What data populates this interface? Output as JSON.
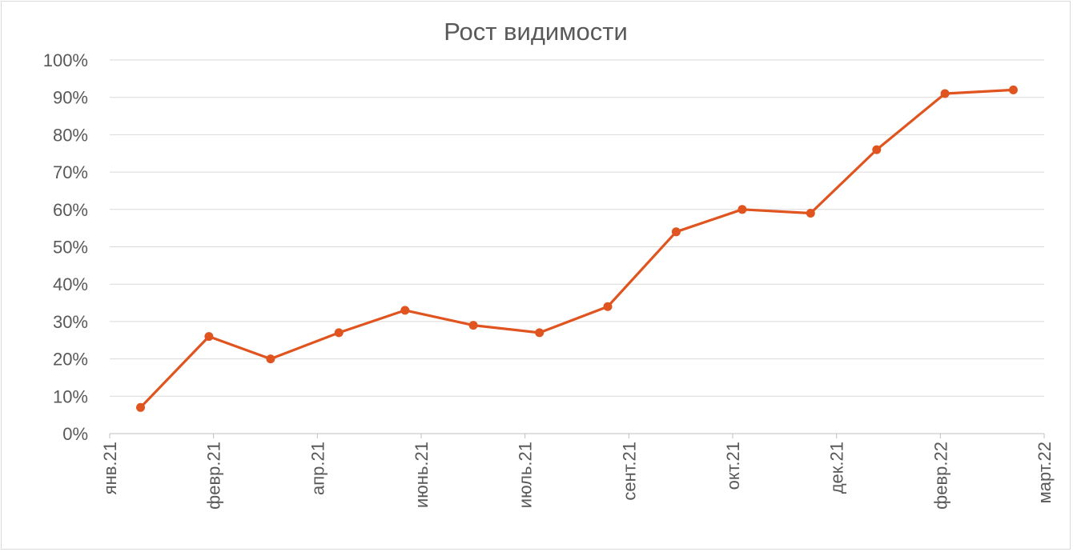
{
  "chart_data": {
    "type": "line",
    "title": "Рост видимости",
    "xlabel": "",
    "ylabel": "",
    "x_ticks": [
      "янв.21",
      "февр.21",
      "апр.21",
      "июнь.21",
      "июль.21",
      "сент.21",
      "окт.21",
      "дек.21",
      "февр.22",
      "март.22"
    ],
    "y_ticks": [
      "0%",
      "10%",
      "20%",
      "30%",
      "40%",
      "50%",
      "60%",
      "70%",
      "80%",
      "90%",
      "100%"
    ],
    "ylim": [
      0,
      100
    ],
    "x_range": [
      "2021-01-01",
      "2022-03-01"
    ],
    "grid": true,
    "legend": "none",
    "series": [
      {
        "color": "#e0541f",
        "points": [
          {
            "x": "2021-01-15",
            "y": 7
          },
          {
            "x": "2021-02-15",
            "y": 26
          },
          {
            "x": "2021-03-15",
            "y": 20
          },
          {
            "x": "2021-04-15",
            "y": 27
          },
          {
            "x": "2021-05-15",
            "y": 33
          },
          {
            "x": "2021-06-15",
            "y": 29
          },
          {
            "x": "2021-07-15",
            "y": 27
          },
          {
            "x": "2021-08-15",
            "y": 34
          },
          {
            "x": "2021-09-15",
            "y": 54
          },
          {
            "x": "2021-10-15",
            "y": 60
          },
          {
            "x": "2021-11-15",
            "y": 59
          },
          {
            "x": "2021-12-15",
            "y": 76
          },
          {
            "x": "2022-01-15",
            "y": 91
          },
          {
            "x": "2022-02-15",
            "y": 92
          }
        ]
      }
    ]
  }
}
